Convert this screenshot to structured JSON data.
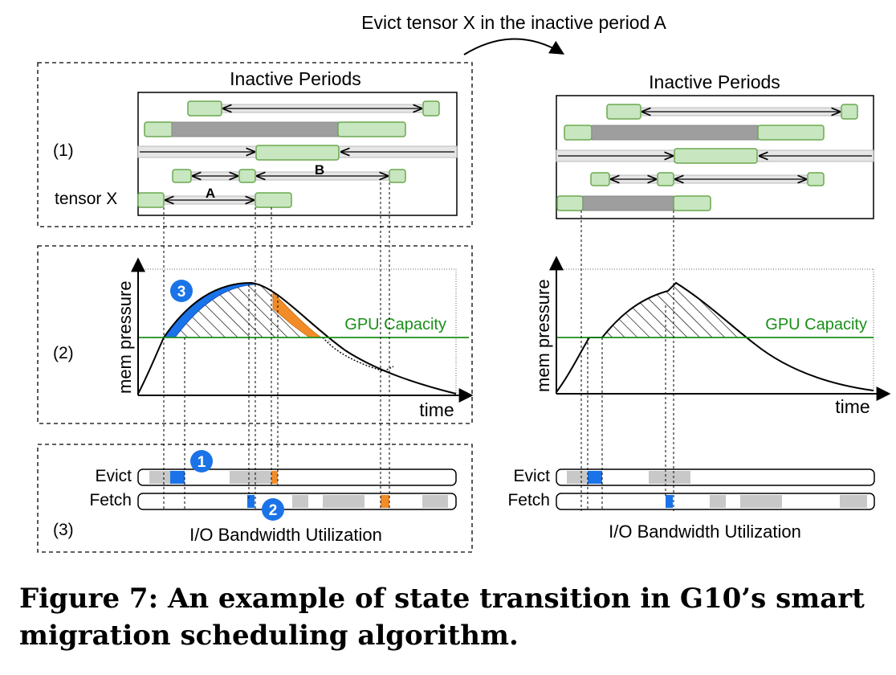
{
  "top_note": "Evict tensor X in the inactive period A",
  "left": {
    "panel1_title": "Inactive Periods",
    "panel2_ylabel": "mem pressure",
    "panel2_xlabel": "time",
    "capacity_label": "GPU Capacity",
    "panel3_title": "I/O Bandwidth Utilization",
    "evict_label": "Evict",
    "fetch_label": "Fetch"
  },
  "right": {
    "panel1_title": "Inactive Periods",
    "panel2_ylabel": "mem pressure",
    "panel2_xlabel": "time",
    "capacity_label": "GPU Capacity",
    "panel3_title": "I/O Bandwidth Utilization",
    "evict_label": "Evict",
    "fetch_label": "Fetch"
  },
  "row_labels": {
    "r1": "(1)",
    "r2": "(2)",
    "r3": "(3)"
  },
  "tensor_label": "tensor X",
  "period_a": "A",
  "period_b": "B",
  "badges": {
    "b1": "1",
    "b2": "2",
    "b3": "3"
  },
  "colors": {
    "tensor_green": "#c8e6c0",
    "tensor_green_border": "#6aa84f",
    "inactive_gray": "#9e9e9e",
    "capacity_green": "#1a8f1a",
    "evict_blue": "#1a73e8",
    "fetch_orange": "#f28c28",
    "io_gray": "#c8c8c8"
  },
  "caption": "Figure 7: An example of state transition in G10’s smart migration scheduling algorithm."
}
